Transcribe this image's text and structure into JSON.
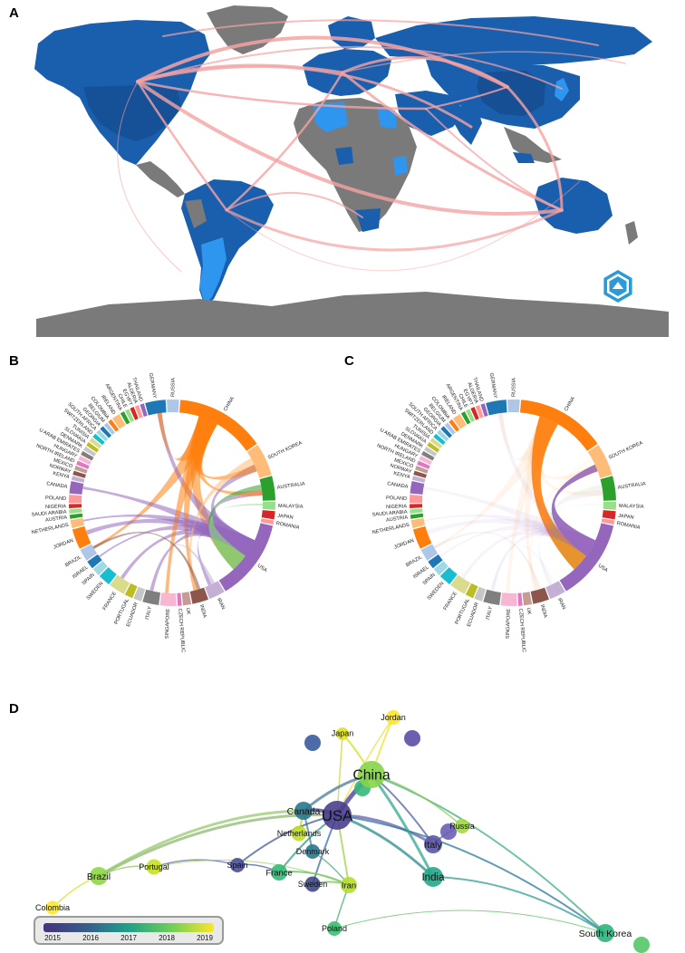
{
  "panels": {
    "a": "A",
    "b": "B",
    "c": "C",
    "d": "D"
  },
  "chord_countries": [
    "CHINA",
    "SOUTH KOREA",
    "AUSTRALIA",
    "MALAYSIA",
    "JAPAN",
    "ROMANIA",
    "USA",
    "IRAN",
    "INDIA",
    "UK",
    "CZECH REPUBLIC",
    "SINGAPORE",
    "ITALY",
    "ECUADOR",
    "PORTUGAL",
    "FRANCE",
    "SWEDEN",
    "SPAIN",
    "ISRAEL",
    "BRAZIL",
    "JORDAN",
    "NETHERLANDS",
    "AUSTRIA",
    "SAUDI ARABIA",
    "NIGERIA",
    "POLAND",
    "CANADA",
    "KENYA",
    "NORWAY",
    "MEXICO",
    "NORTH IRELAND",
    "HUNGARY",
    "U ARAB EMIRATES",
    "DENMARK",
    "SLOVAKIA",
    "TUNISIA",
    "SWITZERLAND",
    "SOUTH AFRICA",
    "GEORGIA",
    "BELGIUM",
    "COLOMBIA",
    "IRELAND",
    "ARGENTINA",
    "CHILE",
    "EGYPT",
    "ALGERIA",
    "THAILAND",
    "GERMANY",
    "RUSSIA"
  ],
  "network_nodes": [
    {
      "label": "China",
      "size": 15
    },
    {
      "label": "USA",
      "size": 16
    },
    {
      "label": "Canada",
      "size": 10
    },
    {
      "label": "Japan",
      "size": 7
    },
    {
      "label": "Jordan",
      "size": 8
    },
    {
      "label": "Netherlands",
      "size": 8.5
    },
    {
      "label": "Denmark",
      "size": 8
    },
    {
      "label": "Russia",
      "size": 8
    },
    {
      "label": "Italy",
      "size": 10
    },
    {
      "label": "India",
      "size": 11
    },
    {
      "label": "Brazil",
      "size": 10
    },
    {
      "label": "Portugal",
      "size": 8.5
    },
    {
      "label": "Spain",
      "size": 8
    },
    {
      "label": "France",
      "size": 9
    },
    {
      "label": "Sweden",
      "size": 8.5
    },
    {
      "label": "Iran",
      "size": 9
    },
    {
      "label": "Poland",
      "size": 8
    },
    {
      "label": "Colombia",
      "size": 7.5
    },
    {
      "label": "South Korea",
      "size": 10
    }
  ],
  "legend": {
    "ticks": [
      "2015",
      "2016",
      "2017",
      "2018",
      "2019"
    ]
  },
  "colors": {
    "map_dark": "#1a5fad",
    "map_light": "#2e96ee",
    "map_gray": "#7a7a7a",
    "flows": "#f5a3a3"
  }
}
